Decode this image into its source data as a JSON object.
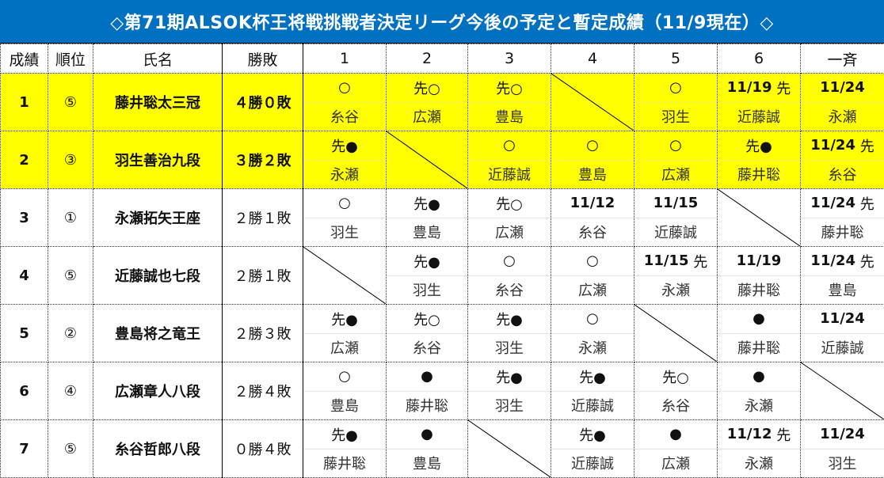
{
  "title": "◇第71期ALSOK杯王将戦挑戦者決定リーグ今後の予定と暫定成績（11/9現在）◇",
  "headers": [
    "成績",
    "順位",
    "氏名",
    "勝敗",
    "1",
    "2",
    "3",
    "4",
    "5",
    "6",
    "一斉"
  ],
  "rows": [
    {
      "rank": "1",
      "seed": "⑤",
      "name": "藤井聡太三冠",
      "record": "４勝０敗",
      "highlight": true,
      "cells": [
        {
          "mark": "○",
          "opp": "糸谷"
        },
        {
          "mark": "先○",
          "opp": "広瀬"
        },
        {
          "mark": "先○",
          "opp": "豊島"
        },
        null,
        {
          "mark": "○",
          "opp": "羽生"
        },
        {
          "date": "11/19",
          "mark": "先",
          "opp": "近藤誠"
        },
        {
          "date": "11/24",
          "opp": "永瀬"
        }
      ]
    },
    {
      "rank": "2",
      "seed": "③",
      "name": "羽生善治九段",
      "record": "３勝２敗",
      "highlight": true,
      "cells": [
        {
          "mark": "先●",
          "opp": "永瀬"
        },
        null,
        {
          "mark": "○",
          "opp": "近藤誠"
        },
        {
          "mark": "○",
          "opp": "豊島"
        },
        {
          "mark": "○",
          "opp": "広瀬"
        },
        {
          "mark": "先●",
          "opp": "藤井聡"
        },
        {
          "date": "11/24",
          "mark": "先",
          "opp": "糸谷"
        }
      ]
    },
    {
      "rank": "3",
      "seed": "①",
      "name": "永瀬拓矢王座",
      "record": "２勝１敗",
      "highlight": false,
      "cells": [
        {
          "mark": "○",
          "opp": "羽生"
        },
        {
          "mark": "先●",
          "opp": "豊島"
        },
        {
          "mark": "先○",
          "opp": "広瀬"
        },
        {
          "date": "11/12",
          "opp": "糸谷"
        },
        {
          "date": "11/15",
          "opp": "近藤誠"
        },
        null,
        {
          "date": "11/24",
          "mark": "先",
          "opp": "藤井聡"
        }
      ]
    },
    {
      "rank": "4",
      "seed": "⑤",
      "name": "近藤誠也七段",
      "record": "２勝１敗",
      "highlight": false,
      "cells": [
        null,
        {
          "mark": "先●",
          "opp": "羽生"
        },
        {
          "mark": "○",
          "opp": "糸谷"
        },
        {
          "mark": "○",
          "opp": "広瀬"
        },
        {
          "date": "11/15",
          "mark": "先",
          "opp": "永瀬"
        },
        {
          "date": "11/19",
          "opp": "藤井聡"
        },
        {
          "date": "11/24",
          "mark": "先",
          "opp": "豊島"
        }
      ]
    },
    {
      "rank": "5",
      "seed": "②",
      "name": "豊島将之竜王",
      "record": "２勝３敗",
      "highlight": false,
      "cells": [
        {
          "mark": "先●",
          "opp": "広瀬"
        },
        {
          "mark": "先○",
          "opp": "糸谷"
        },
        {
          "mark": "先●",
          "opp": "羽生"
        },
        {
          "mark": "○",
          "opp": "永瀬"
        },
        null,
        {
          "mark": "●",
          "opp": "藤井聡"
        },
        {
          "date": "11/24",
          "opp": "近藤誠"
        }
      ]
    },
    {
      "rank": "6",
      "seed": "④",
      "name": "広瀬章人八段",
      "record": "２勝４敗",
      "highlight": false,
      "cells": [
        {
          "mark": "○",
          "opp": "豊島"
        },
        {
          "mark": "●",
          "opp": "藤井聡"
        },
        {
          "mark": "先●",
          "opp": "羽生"
        },
        {
          "mark": "先●",
          "opp": "近藤誠"
        },
        {
          "mark": "先○",
          "opp": "糸谷"
        },
        {
          "mark": "●",
          "opp": "永瀬"
        },
        null
      ]
    },
    {
      "rank": "7",
      "seed": "⑤",
      "name": "糸谷哲郎八段",
      "record": "０勝４敗",
      "highlight": false,
      "cells": [
        {
          "mark": "先●",
          "opp": "藤井聡"
        },
        {
          "mark": "●",
          "opp": "豊島"
        },
        null,
        {
          "mark": "先●",
          "opp": "近藤誠"
        },
        {
          "mark": "●",
          "opp": "広瀬"
        },
        {
          "date": "11/12",
          "mark": "先",
          "opp": "永瀬"
        },
        {
          "date": "11/24",
          "opp": "羽生"
        }
      ]
    }
  ]
}
